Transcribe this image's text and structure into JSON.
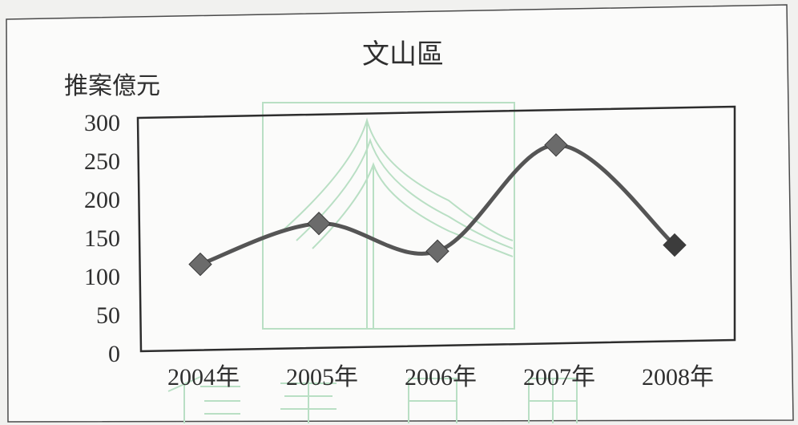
{
  "chart_data": {
    "type": "line",
    "title": "文山區",
    "ylabel": "推案億元",
    "xlabel": "",
    "categories": [
      "2004年",
      "2005年",
      "2006年",
      "2007年",
      "2008年"
    ],
    "series": [
      {
        "values": [
          115,
          168,
          132,
          270,
          140
        ]
      }
    ],
    "ylim": [
      0,
      300
    ],
    "yticks": [
      "0",
      "50",
      "100",
      "150",
      "200",
      "250",
      "300"
    ],
    "grid": false,
    "legend": "none",
    "marker": "diamond",
    "smooth": true,
    "line_color": "#555555",
    "marker_color": "#6b6b6b",
    "last_marker_color": "#3c3c3c"
  }
}
